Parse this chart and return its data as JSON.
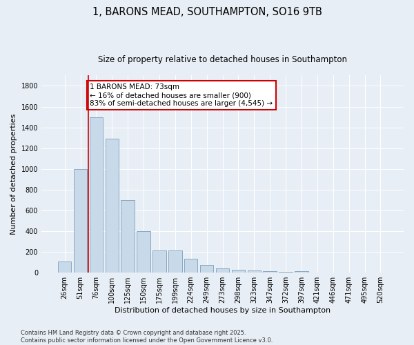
{
  "title": "1, BARONS MEAD, SOUTHAMPTON, SO16 9TB",
  "subtitle": "Size of property relative to detached houses in Southampton",
  "xlabel": "Distribution of detached houses by size in Southampton",
  "ylabel": "Number of detached properties",
  "categories": [
    "26sqm",
    "51sqm",
    "76sqm",
    "100sqm",
    "125sqm",
    "150sqm",
    "175sqm",
    "199sqm",
    "224sqm",
    "249sqm",
    "273sqm",
    "298sqm",
    "323sqm",
    "347sqm",
    "372sqm",
    "397sqm",
    "421sqm",
    "446sqm",
    "471sqm",
    "495sqm",
    "520sqm"
  ],
  "values": [
    110,
    1000,
    1500,
    1290,
    700,
    400,
    215,
    215,
    135,
    75,
    40,
    25,
    22,
    15,
    10,
    18,
    0,
    0,
    0,
    0,
    0
  ],
  "bar_color": "#c8d9ea",
  "bar_edge_color": "#7aa0bb",
  "vline_color": "#cc0000",
  "annotation_text": "1 BARONS MEAD: 73sqm\n← 16% of detached houses are smaller (900)\n83% of semi-detached houses are larger (4,545) →",
  "annotation_box_facecolor": "#ffffff",
  "annotation_box_edgecolor": "#cc0000",
  "ylim": [
    0,
    1900
  ],
  "yticks": [
    0,
    200,
    400,
    600,
    800,
    1000,
    1200,
    1400,
    1600,
    1800
  ],
  "background_color": "#e8eef5",
  "grid_color": "#ffffff",
  "footer": "Contains HM Land Registry data © Crown copyright and database right 2025.\nContains public sector information licensed under the Open Government Licence v3.0.",
  "title_fontsize": 10.5,
  "subtitle_fontsize": 8.5,
  "xlabel_fontsize": 8,
  "ylabel_fontsize": 8,
  "tick_fontsize": 7,
  "footer_fontsize": 6,
  "annotation_fontsize": 7.5
}
